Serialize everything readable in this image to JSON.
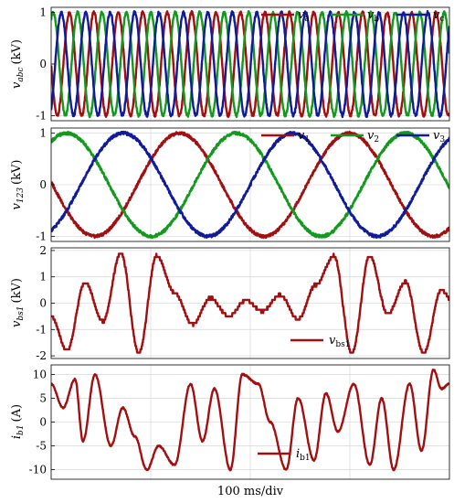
{
  "figure": {
    "xlabel": "100 ms/div",
    "colors": {
      "red": "#a30f10",
      "green": "#119a1c",
      "blue": "#0f1a9c"
    }
  },
  "chart_data": [
    {
      "type": "line",
      "ylabel_main": "v",
      "ylabel_sub": "abc",
      "ylabel_unit": "(kV)",
      "yticks": [
        "1",
        "0",
        "-1"
      ],
      "ylim": [
        -1.1,
        1.1
      ],
      "xlim": [
        0,
        1
      ],
      "x_divisions": 4,
      "series": [
        {
          "name_main": "v",
          "name_sub": "a",
          "color": "#a30f10",
          "amplitude": 1.0,
          "cycles": 16.3,
          "phase_deg": 90
        },
        {
          "name_main": "v",
          "name_sub": "b",
          "color": "#119a1c",
          "amplitude": 1.0,
          "cycles": 16.3,
          "phase_deg": -30
        },
        {
          "name_main": "v",
          "name_sub": "c",
          "color": "#0f1a9c",
          "amplitude": 1.0,
          "cycles": 16.3,
          "phase_deg": 210
        }
      ]
    },
    {
      "type": "line",
      "ylabel_main": "v",
      "ylabel_sub": "123",
      "ylabel_unit": "(kV)",
      "yticks": [
        "1",
        "0",
        "-1"
      ],
      "ylim": [
        -1.1,
        1.1
      ],
      "xlim": [
        0,
        1
      ],
      "x_divisions": 4,
      "series": [
        {
          "name_main": "v",
          "name_sub": "1",
          "color": "#a30f10",
          "amplitude": 1.0,
          "cycles": 2.35,
          "phase_deg": 87
        },
        {
          "name_main": "v",
          "name_sub": "2",
          "color": "#119a1c",
          "amplitude": 1.0,
          "cycles": 2.35,
          "phase_deg": -33
        },
        {
          "name_main": "v",
          "name_sub": "3",
          "color": "#0f1a9c",
          "amplitude": 1.0,
          "cycles": 2.35,
          "phase_deg": 207
        }
      ]
    },
    {
      "type": "line",
      "ylabel_main": "v",
      "ylabel_sub": "bs1",
      "ylabel_unit": "(kV)",
      "yticks": [
        "2",
        "1",
        "0",
        "-1",
        "-2"
      ],
      "ylim": [
        -2.1,
        2.1
      ],
      "xlim": [
        0,
        1
      ],
      "x_divisions": 4,
      "series": [
        {
          "name_main": "v",
          "name_sub": "bs1",
          "color": "#a30f10",
          "x": [
            0,
            0.04,
            0.085,
            0.13,
            0.175,
            0.22,
            0.265,
            0.31,
            0.355,
            0.4,
            0.445,
            0.49,
            0.53,
            0.575,
            0.62,
            0.665,
            0.71,
            0.755,
            0.8,
            0.845,
            0.89,
            0.935,
            0.98,
            1.0
          ],
          "y": [
            -0.5,
            -1.8,
            0.8,
            -0.7,
            1.9,
            -1.9,
            1.8,
            0.4,
            -0.8,
            0.2,
            -0.5,
            0.1,
            -0.3,
            0.3,
            -0.6,
            0.7,
            1.8,
            -1.9,
            1.8,
            -0.4,
            0.8,
            -1.9,
            0.5,
            0.2
          ]
        }
      ]
    },
    {
      "type": "line",
      "ylabel_main": "i",
      "ylabel_sub": "b1",
      "ylabel_unit": "(A)",
      "yticks": [
        "10",
        "5",
        "0",
        "-5",
        "-10"
      ],
      "ylim": [
        -12,
        12
      ],
      "xlim": [
        0,
        1
      ],
      "x_divisions": 4,
      "series": [
        {
          "name_main": "i",
          "name_sub": "b1",
          "color": "#a30f10",
          "x": [
            0,
            0.03,
            0.06,
            0.08,
            0.11,
            0.15,
            0.18,
            0.21,
            0.24,
            0.27,
            0.31,
            0.35,
            0.38,
            0.41,
            0.45,
            0.48,
            0.52,
            0.55,
            0.59,
            0.62,
            0.66,
            0.69,
            0.72,
            0.76,
            0.8,
            0.83,
            0.86,
            0.9,
            0.93,
            0.96,
            0.98,
            1.0
          ],
          "y": [
            8,
            3,
            9,
            -4,
            10,
            -5,
            3,
            -3,
            -10,
            -5,
            -9,
            8,
            -4,
            7,
            -10,
            10,
            8,
            0,
            -10,
            5,
            -8,
            6,
            -2,
            8,
            -9,
            5,
            -10,
            8,
            -6,
            11,
            7,
            8
          ]
        }
      ]
    }
  ]
}
